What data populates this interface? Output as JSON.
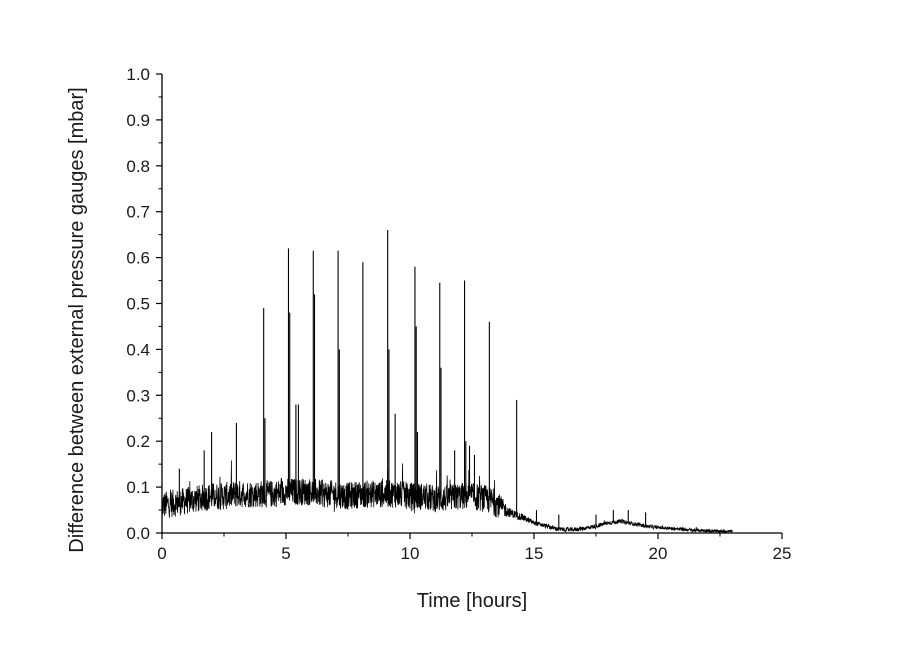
{
  "chart_data": {
    "type": "line",
    "title": "",
    "xlabel": "Time [hours]",
    "ylabel": "Difference between external pressure gauges [mbar]",
    "xlim": [
      0,
      25
    ],
    "ylim": [
      0,
      1.0
    ],
    "xticks": [
      0,
      5,
      10,
      15,
      20,
      25
    ],
    "xtick_labels": [
      "0",
      "5",
      "10",
      "15",
      "20",
      "25"
    ],
    "yticks": [
      0.0,
      0.1,
      0.2,
      0.3,
      0.4,
      0.5,
      0.6,
      0.7,
      0.8,
      0.9,
      1.0
    ],
    "ytick_labels": [
      "0.0",
      "0.1",
      "0.2",
      "0.3",
      "0.4",
      "0.5",
      "0.6",
      "0.7",
      "0.8",
      "0.9",
      "1.0"
    ],
    "grid": false,
    "legend": "none",
    "line_color": "#000000",
    "series": [
      {
        "baseline": {
          "x": [
            0,
            0.5,
            1,
            1.5,
            2,
            2.5,
            3,
            3.5,
            4,
            4.5,
            5,
            5.5,
            6,
            6.5,
            7,
            7.5,
            8,
            8.5,
            9,
            9.5,
            10,
            10.5,
            11,
            11.5,
            12,
            12.5,
            13,
            13.3,
            13.6,
            14,
            14.5,
            15,
            15.5,
            16,
            16.5,
            17,
            17.5,
            18,
            18.5,
            19,
            19.5,
            20,
            20.5,
            21,
            21.5,
            22,
            22.5,
            23
          ],
          "y": [
            0.06,
            0.065,
            0.07,
            0.075,
            0.08,
            0.08,
            0.085,
            0.085,
            0.085,
            0.085,
            0.09,
            0.09,
            0.09,
            0.085,
            0.085,
            0.08,
            0.085,
            0.085,
            0.085,
            0.085,
            0.08,
            0.08,
            0.075,
            0.075,
            0.08,
            0.08,
            0.075,
            0.07,
            0.06,
            0.045,
            0.035,
            0.022,
            0.015,
            0.008,
            0.007,
            0.01,
            0.015,
            0.022,
            0.025,
            0.02,
            0.015,
            0.012,
            0.01,
            0.008,
            0.006,
            0.005,
            0.004,
            0.004
          ],
          "noise_amplitude": {
            "x": [
              0,
              13.5,
              14,
              15,
              23
            ],
            "y": [
              0.03,
              0.03,
              0.01,
              0.005,
              0.003
            ]
          }
        },
        "spikes": {
          "x": [
            0.7,
            1.7,
            2.0,
            3.0,
            4.1,
            4.15,
            5.1,
            5.15,
            5.4,
            5.5,
            6.1,
            6.15,
            7.1,
            7.15,
            8.1,
            9.1,
            9.15,
            9.4,
            10.2,
            10.25,
            10.3,
            11.2,
            11.25,
            11.8,
            12.2,
            12.25,
            12.4,
            12.6,
            13.2,
            14.3,
            15.1,
            16.0,
            17.5,
            18.2,
            18.8,
            19.5
          ],
          "y": [
            0.14,
            0.18,
            0.22,
            0.24,
            0.49,
            0.25,
            0.62,
            0.48,
            0.28,
            0.28,
            0.615,
            0.52,
            0.615,
            0.4,
            0.59,
            0.66,
            0.4,
            0.26,
            0.58,
            0.45,
            0.22,
            0.545,
            0.36,
            0.18,
            0.55,
            0.2,
            0.19,
            0.17,
            0.46,
            0.29,
            0.05,
            0.04,
            0.04,
            0.05,
            0.05,
            0.045
          ]
        }
      }
    ]
  }
}
